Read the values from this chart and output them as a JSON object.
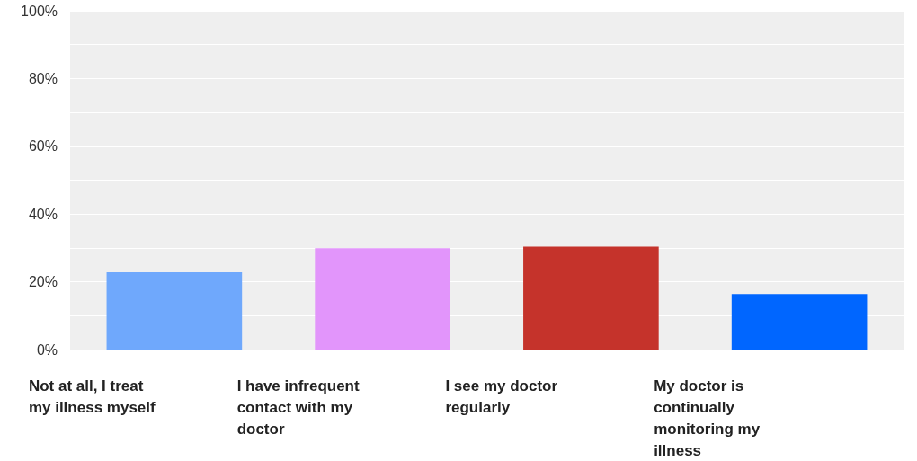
{
  "chart_data": {
    "type": "bar",
    "categories": [
      "Not at all, I treat my illness myself",
      "I have infrequent contact with my doctor",
      "I see my doctor regularly",
      "My doctor is continually monitoring my illness"
    ],
    "values": [
      22.8,
      29.9,
      30.4,
      16.4
    ],
    "colors": [
      "#6fa8fc",
      "#e295fb",
      "#c5332b",
      "#0066ff"
    ],
    "ylim": [
      0,
      100
    ],
    "yticks": [
      {
        "value": 0,
        "label": "0%"
      },
      {
        "value": 10,
        "label": null
      },
      {
        "value": 20,
        "label": "20%"
      },
      {
        "value": 30,
        "label": null
      },
      {
        "value": 40,
        "label": "40%"
      },
      {
        "value": 50,
        "label": null
      },
      {
        "value": 60,
        "label": "60%"
      },
      {
        "value": 70,
        "label": null
      },
      {
        "value": 80,
        "label": "80%"
      },
      {
        "value": 90,
        "label": null
      },
      {
        "value": 100,
        "label": "100%"
      }
    ],
    "grid": true
  }
}
